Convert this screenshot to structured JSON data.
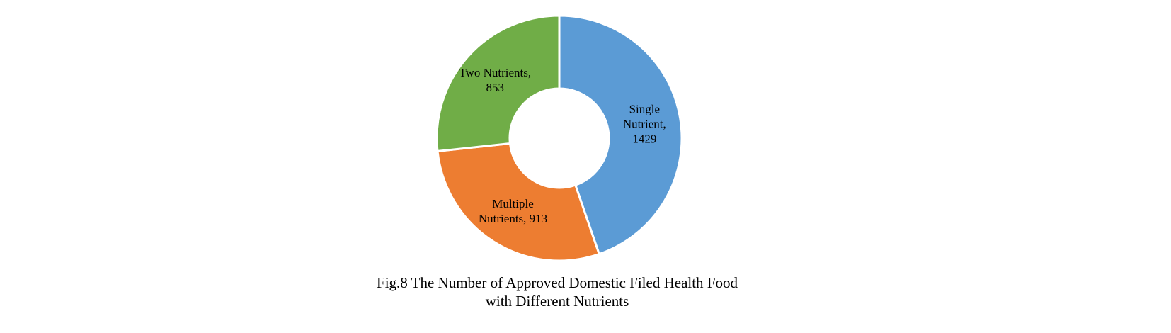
{
  "chart_data": {
    "type": "donut",
    "title": "Fig.8 The Number of Approved Domestic Filed Health Food with Different Nutrients",
    "values": [
      1429,
      913,
      853
    ],
    "value_labels": [
      "Single Nutrient, 1429",
      "Multiple Nutrients, 913",
      "Two Nutrients, 853"
    ],
    "colors": [
      "#5b9bd5",
      "#ed7d31",
      "#70ad47"
    ]
  }
}
